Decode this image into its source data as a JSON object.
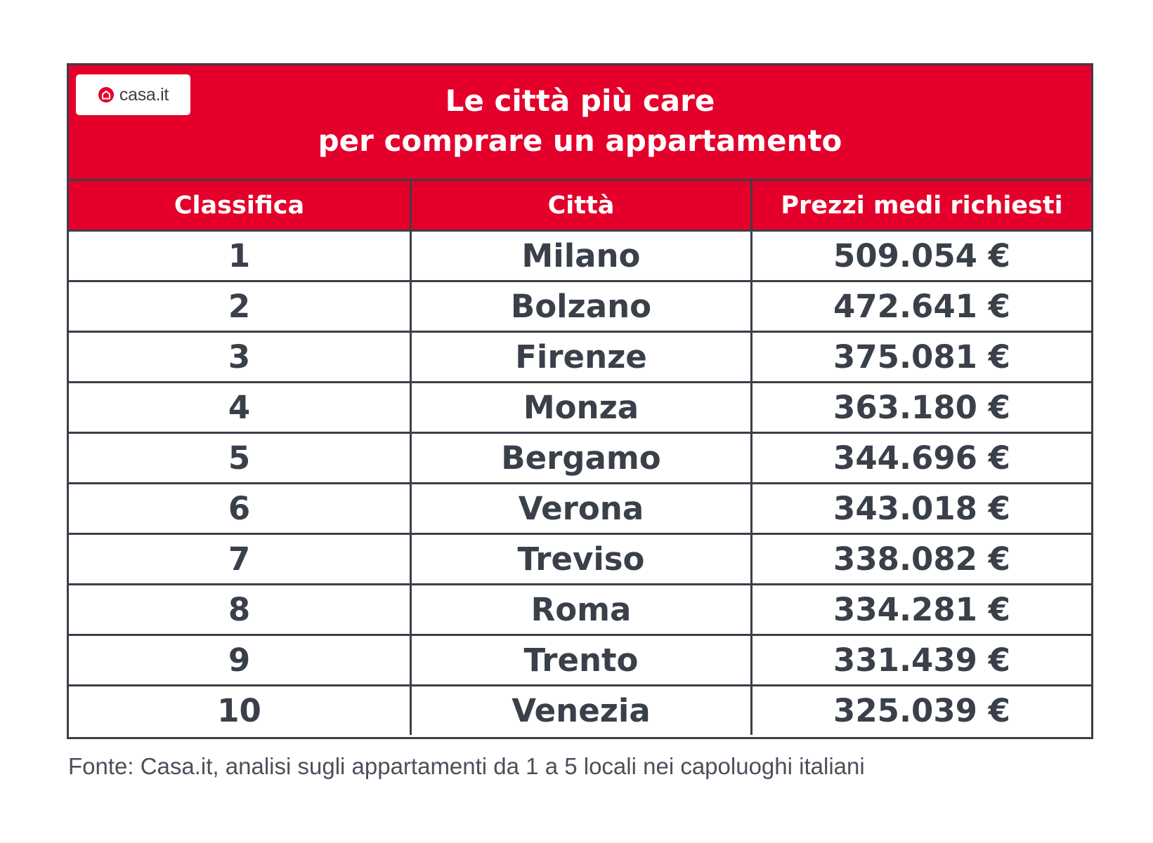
{
  "logo": {
    "icon": "house-icon",
    "text": "casa.it"
  },
  "title": {
    "line1": "Le città più care",
    "line2": "per comprare un appartamento"
  },
  "table": {
    "headers": [
      "Classifica",
      "Città",
      "Prezzi medi richiesti"
    ],
    "rows": [
      [
        "1",
        "Milano",
        "509.054 €"
      ],
      [
        "2",
        "Bolzano",
        "472.641 €"
      ],
      [
        "3",
        "Firenze",
        "375.081 €"
      ],
      [
        "4",
        "Monza",
        "363.180 €"
      ],
      [
        "5",
        "Bergamo",
        "344.696 €"
      ],
      [
        "6",
        "Verona",
        "343.018 €"
      ],
      [
        "7",
        "Treviso",
        "338.082 €"
      ],
      [
        "8",
        "Roma",
        "334.281 €"
      ],
      [
        "9",
        "Trento",
        "331.439 €"
      ],
      [
        "10",
        "Venezia",
        "325.039 €"
      ]
    ]
  },
  "source": "Fonte: Casa.it, analisi sugli appartamenti da 1 a 5 locali nei capoluoghi italiani",
  "colors": {
    "brand_red": "#e4002b",
    "text_dark": "#3a404a",
    "background": "#ffffff"
  }
}
